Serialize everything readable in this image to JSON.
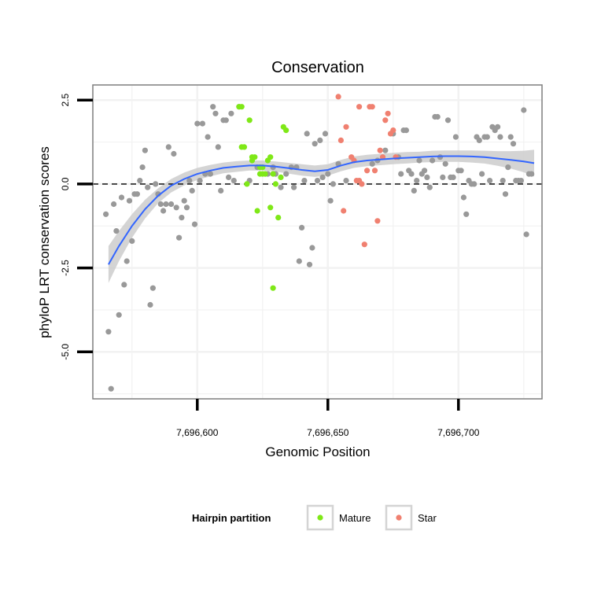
{
  "chart_data": {
    "type": "scatter",
    "title": "Conservation",
    "xlabel": "Genomic Position",
    "ylabel": "phyloP LRT conservation scores",
    "xlim": [
      7696560,
      7696732
    ],
    "ylim": [
      -6.4,
      2.95
    ],
    "x_ticks": [
      {
        "value": 7696600,
        "label": "7,696,600"
      },
      {
        "value": 7696650,
        "label": "7,696,650"
      },
      {
        "value": 7696700,
        "label": "7,696,700"
      }
    ],
    "y_ticks": [
      {
        "value": 2.5,
        "label": "2.5"
      },
      {
        "value": 0,
        "label": "0.0"
      },
      {
        "value": -2.5,
        "label": "-2.5"
      },
      {
        "value": -5,
        "label": "-5.0"
      }
    ],
    "reference_line": {
      "y": 0,
      "style": "dashed"
    },
    "legend": {
      "title": "Hairpin partition",
      "entries": [
        {
          "name": "Mature",
          "color": "#7fe817"
        },
        {
          "name": "Star",
          "color": "#f08070"
        }
      ]
    },
    "colors": {
      "other": "#999999",
      "smooth": "#3366ff",
      "ribbon": "#cccccc"
    },
    "series": [
      {
        "name": "Other",
        "points": [
          [
            7696565,
            -0.9
          ],
          [
            7696566,
            -4.4
          ],
          [
            7696567,
            -6.1
          ],
          [
            7696568,
            -0.6
          ],
          [
            7696569,
            -1.4
          ],
          [
            7696570,
            -3.9
          ],
          [
            7696571,
            -0.4
          ],
          [
            7696572,
            -3.0
          ],
          [
            7696573,
            -2.3
          ],
          [
            7696574,
            -0.5
          ],
          [
            7696575,
            -1.7
          ],
          [
            7696576,
            -0.3
          ],
          [
            7696577,
            -0.3
          ],
          [
            7696578,
            0.1
          ],
          [
            7696579,
            0.5
          ],
          [
            7696580,
            1.0
          ],
          [
            7696581,
            -0.1
          ],
          [
            7696582,
            -3.6
          ],
          [
            7696583,
            -3.1
          ],
          [
            7696584,
            0.0
          ],
          [
            7696585,
            -0.3
          ],
          [
            7696586,
            -0.6
          ],
          [
            7696587,
            -0.8
          ],
          [
            7696588,
            -0.6
          ],
          [
            7696589,
            1.1
          ],
          [
            7696590,
            -0.6
          ],
          [
            7696591,
            0.9
          ],
          [
            7696592,
            -0.7
          ],
          [
            7696593,
            -1.6
          ],
          [
            7696594,
            -1.0
          ],
          [
            7696595,
            -0.5
          ],
          [
            7696596,
            -0.7
          ],
          [
            7696597,
            0.1
          ],
          [
            7696598,
            -0.2
          ],
          [
            7696599,
            -1.2
          ],
          [
            7696600,
            1.8
          ],
          [
            7696601,
            0.1
          ],
          [
            7696602,
            1.8
          ],
          [
            7696603,
            0.3
          ],
          [
            7696604,
            1.4
          ],
          [
            7696605,
            0.3
          ],
          [
            7696606,
            2.3
          ],
          [
            7696607,
            2.1
          ],
          [
            7696608,
            1.1
          ],
          [
            7696609,
            -0.2
          ],
          [
            7696610,
            1.9
          ],
          [
            7696611,
            1.9
          ],
          [
            7696612,
            0.2
          ],
          [
            7696613,
            2.1
          ],
          [
            7696614,
            0.1
          ],
          [
            7696616,
            2.3
          ],
          [
            7696620,
            0.1
          ],
          [
            7696623,
            0.5
          ],
          [
            7696627,
            0.3
          ],
          [
            7696629,
            0.5
          ],
          [
            7696630,
            0.3
          ],
          [
            7696632,
            -0.1
          ],
          [
            7696634,
            0.3
          ],
          [
            7696636,
            0.5
          ],
          [
            7696637,
            -0.1
          ],
          [
            7696638,
            0.5
          ],
          [
            7696639,
            -2.3
          ],
          [
            7696640,
            -1.3
          ],
          [
            7696641,
            0.1
          ],
          [
            7696642,
            1.5
          ],
          [
            7696643,
            -2.4
          ],
          [
            7696644,
            -1.9
          ],
          [
            7696645,
            1.2
          ],
          [
            7696646,
            0.1
          ],
          [
            7696647,
            1.3
          ],
          [
            7696648,
            0.2
          ],
          [
            7696649,
            1.5
          ],
          [
            7696650,
            0.3
          ],
          [
            7696651,
            -0.5
          ],
          [
            7696652,
            0.0
          ],
          [
            7696654,
            0.6
          ],
          [
            7696657,
            0.1
          ],
          [
            7696667,
            0.6
          ],
          [
            7696669,
            0.7
          ],
          [
            7696672,
            1.0
          ],
          [
            7696675,
            1.5
          ],
          [
            7696677,
            0.8
          ],
          [
            7696678,
            0.3
          ],
          [
            7696679,
            1.6
          ],
          [
            7696680,
            1.6
          ],
          [
            7696681,
            0.4
          ],
          [
            7696682,
            0.3
          ],
          [
            7696683,
            -0.2
          ],
          [
            7696684,
            0.1
          ],
          [
            7696685,
            0.7
          ],
          [
            7696686,
            0.3
          ],
          [
            7696687,
            0.4
          ],
          [
            7696688,
            0.2
          ],
          [
            7696689,
            -0.1
          ],
          [
            7696690,
            0.7
          ],
          [
            7696691,
            2.0
          ],
          [
            7696692,
            2.0
          ],
          [
            7696693,
            0.8
          ],
          [
            7696694,
            0.2
          ],
          [
            7696695,
            0.6
          ],
          [
            7696696,
            1.9
          ],
          [
            7696697,
            0.2
          ],
          [
            7696698,
            0.2
          ],
          [
            7696699,
            1.4
          ],
          [
            7696700,
            0.4
          ],
          [
            7696701,
            0.4
          ],
          [
            7696702,
            -0.4
          ],
          [
            7696703,
            -0.9
          ],
          [
            7696704,
            0.1
          ],
          [
            7696705,
            0.0
          ],
          [
            7696706,
            0.0
          ],
          [
            7696707,
            1.4
          ],
          [
            7696708,
            1.3
          ],
          [
            7696709,
            0.3
          ],
          [
            7696710,
            1.4
          ],
          [
            7696711,
            1.4
          ],
          [
            7696712,
            0.1
          ],
          [
            7696713,
            1.7
          ],
          [
            7696714,
            1.6
          ],
          [
            7696715,
            1.7
          ],
          [
            7696716,
            1.4
          ],
          [
            7696717,
            0.1
          ],
          [
            7696718,
            -0.3
          ],
          [
            7696719,
            0.5
          ],
          [
            7696720,
            1.4
          ],
          [
            7696721,
            1.2
          ],
          [
            7696722,
            0.1
          ],
          [
            7696723,
            0.1
          ],
          [
            7696724,
            0.1
          ],
          [
            7696725,
            2.2
          ],
          [
            7696726,
            -1.5
          ],
          [
            7696727,
            0.3
          ],
          [
            7696728,
            0.3
          ]
        ]
      },
      {
        "name": "Mature",
        "points": [
          [
            7696616,
            2.3
          ],
          [
            7696617,
            2.3
          ],
          [
            7696617,
            1.1
          ],
          [
            7696618,
            1.1
          ],
          [
            7696619,
            0.0
          ],
          [
            7696620,
            1.9
          ],
          [
            7696621,
            0.7
          ],
          [
            7696621,
            0.8
          ],
          [
            7696622,
            0.8
          ],
          [
            7696623,
            -0.8
          ],
          [
            7696624,
            0.3
          ],
          [
            7696624,
            0.5
          ],
          [
            7696625,
            0.3
          ],
          [
            7696625,
            0.5
          ],
          [
            7696626,
            0.3
          ],
          [
            7696627,
            0.7
          ],
          [
            7696628,
            -0.7
          ],
          [
            7696628,
            0.8
          ],
          [
            7696629,
            -3.1
          ],
          [
            7696629,
            0.3
          ],
          [
            7696630,
            0.0
          ],
          [
            7696631,
            -1.0
          ],
          [
            7696632,
            0.2
          ],
          [
            7696633,
            1.7
          ],
          [
            7696634,
            1.6
          ]
        ]
      },
      {
        "name": "Star",
        "points": [
          [
            7696654,
            2.6
          ],
          [
            7696655,
            1.3
          ],
          [
            7696656,
            -0.8
          ],
          [
            7696657,
            1.7
          ],
          [
            7696659,
            0.8
          ],
          [
            7696660,
            0.7
          ],
          [
            7696661,
            0.1
          ],
          [
            7696662,
            2.3
          ],
          [
            7696662,
            0.1
          ],
          [
            7696663,
            0.0
          ],
          [
            7696664,
            -1.8
          ],
          [
            7696665,
            0.4
          ],
          [
            7696666,
            2.3
          ],
          [
            7696667,
            2.3
          ],
          [
            7696668,
            0.4
          ],
          [
            7696669,
            -1.1
          ],
          [
            7696670,
            1.0
          ],
          [
            7696671,
            0.8
          ],
          [
            7696672,
            1.9
          ],
          [
            7696673,
            2.1
          ],
          [
            7696674,
            1.5
          ],
          [
            7696675,
            1.6
          ],
          [
            7696676,
            0.8
          ]
        ]
      }
    ],
    "smooth": {
      "x": [
        7696566,
        7696570,
        7696575,
        7696580,
        7696585,
        7696590,
        7696595,
        7696600,
        7696605,
        7696610,
        7696615,
        7696620,
        7696625,
        7696630,
        7696635,
        7696640,
        7696645,
        7696650,
        7696655,
        7696660,
        7696665,
        7696670,
        7696675,
        7696680,
        7696685,
        7696690,
        7696695,
        7696700,
        7696705,
        7696710,
        7696715,
        7696720,
        7696725,
        7696729
      ],
      "y": [
        -2.4,
        -1.85,
        -1.25,
        -0.75,
        -0.35,
        -0.05,
        0.15,
        0.3,
        0.4,
        0.48,
        0.52,
        0.55,
        0.55,
        0.52,
        0.47,
        0.42,
        0.38,
        0.42,
        0.55,
        0.65,
        0.7,
        0.73,
        0.76,
        0.78,
        0.8,
        0.82,
        0.83,
        0.83,
        0.82,
        0.8,
        0.76,
        0.72,
        0.67,
        0.62
      ],
      "ci": [
        0.55,
        0.45,
        0.35,
        0.28,
        0.22,
        0.2,
        0.19,
        0.18,
        0.17,
        0.16,
        0.16,
        0.15,
        0.15,
        0.15,
        0.16,
        0.17,
        0.17,
        0.17,
        0.17,
        0.17,
        0.17,
        0.17,
        0.17,
        0.17,
        0.16,
        0.17,
        0.17,
        0.17,
        0.18,
        0.19,
        0.22,
        0.26,
        0.32,
        0.4
      ]
    }
  }
}
